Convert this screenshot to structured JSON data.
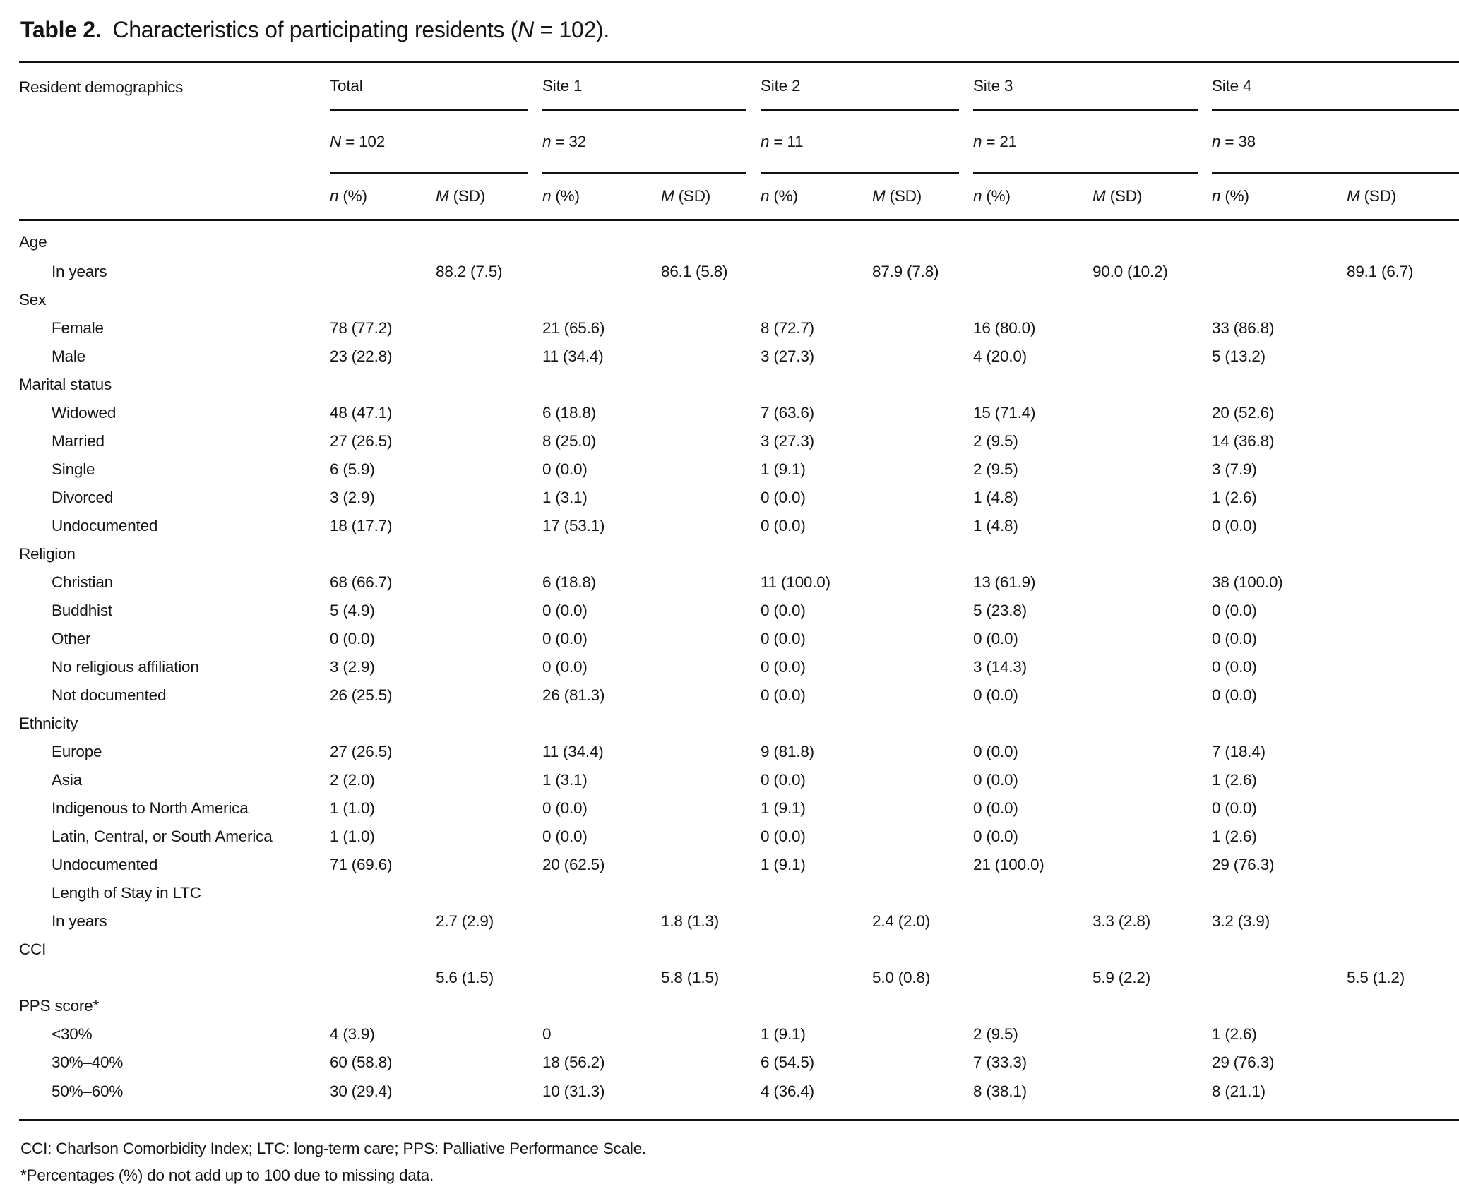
{
  "title": {
    "bold": "Table 2.",
    "prefix": "Characteristics of participating residents (",
    "var": "N",
    "suffix": " = 102)."
  },
  "header": {
    "demographics_label": "Resident demographics",
    "groups": [
      {
        "label": "Total",
        "count_var": "N",
        "count_rest": " = 102"
      },
      {
        "label": "Site 1",
        "count_var": "n",
        "count_rest": " = 32"
      },
      {
        "label": "Site 2",
        "count_var": "n",
        "count_rest": " = 11"
      },
      {
        "label": "Site 3",
        "count_var": "n",
        "count_rest": " = 21"
      },
      {
        "label": "Site 4",
        "count_var": "n",
        "count_rest": " = 38"
      }
    ],
    "subcols": [
      {
        "var": "n",
        "rest": " (%)"
      },
      {
        "var": "M",
        "rest": " (SD)"
      }
    ]
  },
  "rows": [
    {
      "label": "Age",
      "indent": false,
      "cells": [
        "",
        "",
        "",
        "",
        "",
        "",
        "",
        "",
        "",
        ""
      ]
    },
    {
      "label": "In years",
      "indent": true,
      "cells": [
        "",
        "88.2 (7.5)",
        "",
        "86.1 (5.8)",
        "",
        "87.9 (7.8)",
        "",
        "90.0 (10.2)",
        "",
        "89.1 (6.7)"
      ]
    },
    {
      "label": "Sex",
      "indent": false,
      "cells": [
        "",
        "",
        "",
        "",
        "",
        "",
        "",
        "",
        "",
        ""
      ]
    },
    {
      "label": "Female",
      "indent": true,
      "cells": [
        "78 (77.2)",
        "",
        "21 (65.6)",
        "",
        "8 (72.7)",
        "",
        "16 (80.0)",
        "",
        "33 (86.8)",
        ""
      ]
    },
    {
      "label": "Male",
      "indent": true,
      "cells": [
        "23 (22.8)",
        "",
        "11 (34.4)",
        "",
        "3 (27.3)",
        "",
        "4 (20.0)",
        "",
        "5 (13.2)",
        ""
      ]
    },
    {
      "label": "Marital status",
      "indent": false,
      "cells": [
        "",
        "",
        "",
        "",
        "",
        "",
        "",
        "",
        "",
        ""
      ]
    },
    {
      "label": "Widowed",
      "indent": true,
      "cells": [
        "48 (47.1)",
        "",
        "6 (18.8)",
        "",
        "7 (63.6)",
        "",
        "15 (71.4)",
        "",
        "20 (52.6)",
        ""
      ]
    },
    {
      "label": "Married",
      "indent": true,
      "cells": [
        "27 (26.5)",
        "",
        "8 (25.0)",
        "",
        "3 (27.3)",
        "",
        "2 (9.5)",
        "",
        "14 (36.8)",
        ""
      ]
    },
    {
      "label": "Single",
      "indent": true,
      "cells": [
        "6 (5.9)",
        "",
        "0 (0.0)",
        "",
        "1 (9.1)",
        "",
        "2 (9.5)",
        "",
        "3 (7.9)",
        ""
      ]
    },
    {
      "label": "Divorced",
      "indent": true,
      "cells": [
        "3 (2.9)",
        "",
        "1 (3.1)",
        "",
        "0 (0.0)",
        "",
        "1 (4.8)",
        "",
        "1 (2.6)",
        ""
      ]
    },
    {
      "label": "Undocumented",
      "indent": true,
      "cells": [
        "18 (17.7)",
        "",
        "17 (53.1)",
        "",
        "0 (0.0)",
        "",
        "1 (4.8)",
        "",
        "0 (0.0)",
        ""
      ]
    },
    {
      "label": "Religion",
      "indent": false,
      "cells": [
        "",
        "",
        "",
        "",
        "",
        "",
        "",
        "",
        "",
        ""
      ]
    },
    {
      "label": "Christian",
      "indent": true,
      "cells": [
        "68 (66.7)",
        "",
        "6 (18.8)",
        "",
        "11 (100.0)",
        "",
        "13 (61.9)",
        "",
        "38 (100.0)",
        ""
      ]
    },
    {
      "label": "Buddhist",
      "indent": true,
      "cells": [
        "5 (4.9)",
        "",
        "0 (0.0)",
        "",
        "0 (0.0)",
        "",
        "5 (23.8)",
        "",
        "0 (0.0)",
        ""
      ]
    },
    {
      "label": "Other",
      "indent": true,
      "cells": [
        "0 (0.0)",
        "",
        "0 (0.0)",
        "",
        "0 (0.0)",
        "",
        "0 (0.0)",
        "",
        "0 (0.0)",
        ""
      ]
    },
    {
      "label": "No religious affiliation",
      "indent": true,
      "cells": [
        "3 (2.9)",
        "",
        "0 (0.0)",
        "",
        "0 (0.0)",
        "",
        "3 (14.3)",
        "",
        "0 (0.0)",
        ""
      ]
    },
    {
      "label": "Not documented",
      "indent": true,
      "cells": [
        "26 (25.5)",
        "",
        "26 (81.3)",
        "",
        "0 (0.0)",
        "",
        "0 (0.0)",
        "",
        "0 (0.0)",
        ""
      ]
    },
    {
      "label": "Ethnicity",
      "indent": false,
      "cells": [
        "",
        "",
        "",
        "",
        "",
        "",
        "",
        "",
        "",
        ""
      ]
    },
    {
      "label": "Europe",
      "indent": true,
      "cells": [
        "27 (26.5)",
        "",
        "11 (34.4)",
        "",
        "9 (81.8)",
        "",
        "0 (0.0)",
        "",
        "7 (18.4)",
        ""
      ]
    },
    {
      "label": "Asia",
      "indent": true,
      "cells": [
        "2 (2.0)",
        "",
        "1 (3.1)",
        "",
        "0 (0.0)",
        "",
        "0 (0.0)",
        "",
        "1 (2.6)",
        ""
      ]
    },
    {
      "label": "Indigenous to North America",
      "indent": true,
      "cells": [
        "1 (1.0)",
        "",
        "0 (0.0)",
        "",
        "1 (9.1)",
        "",
        "0 (0.0)",
        "",
        "0 (0.0)",
        ""
      ]
    },
    {
      "label": "Latin, Central, or South America",
      "indent": true,
      "cells": [
        "1 (1.0)",
        "",
        "0 (0.0)",
        "",
        "0 (0.0)",
        "",
        "0 (0.0)",
        "",
        "1 (2.6)",
        ""
      ]
    },
    {
      "label": "Undocumented",
      "indent": true,
      "cells": [
        "71 (69.6)",
        "",
        "20 (62.5)",
        "",
        "1 (9.1)",
        "",
        "21 (100.0)",
        "",
        "29 (76.3)",
        ""
      ]
    },
    {
      "label": "Length of Stay in LTC",
      "indent": true,
      "cells": [
        "",
        "",
        "",
        "",
        "",
        "",
        "",
        "",
        "",
        ""
      ]
    },
    {
      "label": "In years",
      "indent": true,
      "cells": [
        "",
        "2.7 (2.9)",
        "",
        "1.8 (1.3)",
        "",
        "2.4 (2.0)",
        "",
        "3.3 (2.8)",
        "3.2 (3.9)",
        ""
      ]
    },
    {
      "label": "CCI",
      "indent": false,
      "cells": [
        "",
        "",
        "",
        "",
        "",
        "",
        "",
        "",
        "",
        ""
      ]
    },
    {
      "label": "",
      "indent": false,
      "cells": [
        "",
        "5.6 (1.5)",
        "",
        "5.8 (1.5)",
        "",
        "5.0 (0.8)",
        "",
        "5.9 (2.2)",
        "",
        "5.5 (1.2)"
      ]
    },
    {
      "label": "PPS score*",
      "indent": false,
      "cells": [
        "",
        "",
        "",
        "",
        "",
        "",
        "",
        "",
        "",
        ""
      ]
    },
    {
      "label": "<30%",
      "indent": true,
      "cells": [
        "4 (3.9)",
        "",
        "0",
        "",
        "1 (9.1)",
        "",
        "2 (9.5)",
        "",
        "1 (2.6)",
        ""
      ]
    },
    {
      "label": "30%–40%",
      "indent": true,
      "cells": [
        "60 (58.8)",
        "",
        "18 (56.2)",
        "",
        "6 (54.5)",
        "",
        "7 (33.3)",
        "",
        "29 (76.3)",
        ""
      ]
    },
    {
      "label": "50%–60%",
      "indent": true,
      "cells": [
        "30 (29.4)",
        "",
        "10 (31.3)",
        "",
        "4 (36.4)",
        "",
        "8 (38.1)",
        "",
        "8 (21.1)",
        ""
      ]
    }
  ],
  "footnotes": [
    "CCI: Charlson Comorbidity Index; LTC: long-term care; PPS: Palliative Performance Scale.",
    "*Percentages (%) do not add up to 100 due to missing data."
  ]
}
